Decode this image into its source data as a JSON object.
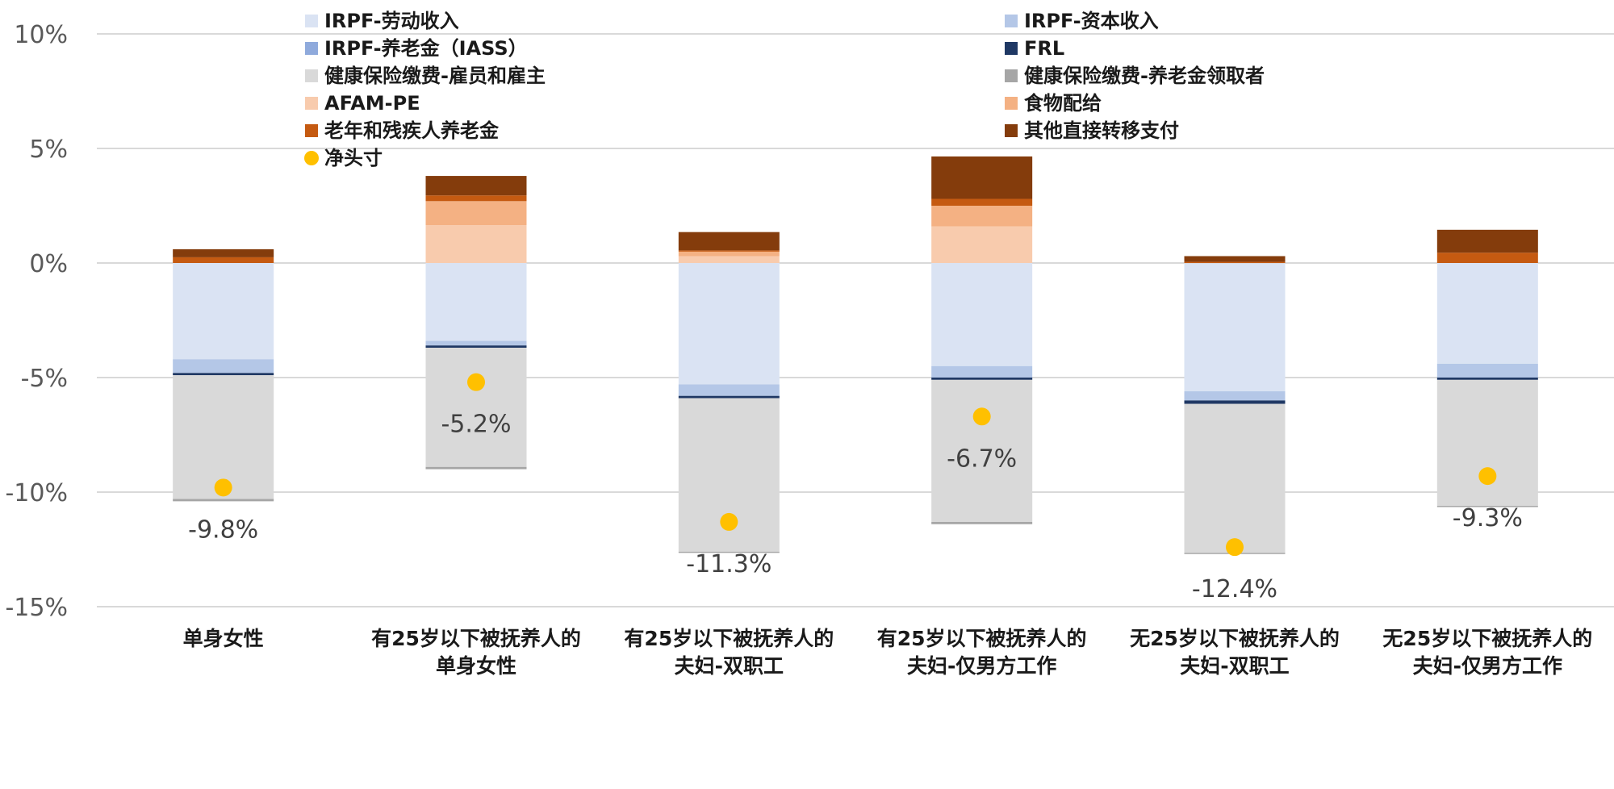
{
  "chart_data": {
    "type": "bar",
    "stacked": true,
    "title": "",
    "xlabel": "",
    "ylabel": "",
    "ylim": [
      -15,
      10
    ],
    "yticks": [
      10,
      5,
      0,
      -5,
      -10,
      -15
    ],
    "ytick_labels": [
      "10%",
      "5%",
      "0%",
      "-5%",
      "-10%",
      "-15%"
    ],
    "grid": true,
    "legend_position": "top",
    "categories": [
      [
        "单身女性"
      ],
      [
        "有25岁以下被抚养人的",
        "单身女性"
      ],
      [
        "有25岁以下被抚养人的",
        "夫妇-双职工"
      ],
      [
        "有25岁以下被抚养人的",
        "夫妇-仅男方工作"
      ],
      [
        "无25岁以下被抚养人的",
        "夫妇-双职工"
      ],
      [
        "无25岁以下被抚养人的",
        "夫妇-仅男方工作"
      ]
    ],
    "series": [
      {
        "name": "IRPF-劳动收入",
        "color": "#dae3f3",
        "values": [
          -4.2,
          -3.4,
          -5.3,
          -4.5,
          -5.6,
          -4.4
        ]
      },
      {
        "name": "IRPF-资本收入",
        "color": "#b4c7e7",
        "values": [
          -0.6,
          -0.2,
          -0.5,
          -0.5,
          -0.4,
          -0.6
        ]
      },
      {
        "name": "IRPF-养老金（IASS）",
        "color": "#8faadc",
        "values": [
          0,
          0,
          0,
          0,
          0,
          0
        ]
      },
      {
        "name": "FRL",
        "color": "#1f3864",
        "values": [
          -0.1,
          -0.1,
          -0.1,
          -0.1,
          -0.15,
          -0.1
        ]
      },
      {
        "name": "健康保险缴费-雇员和雇主",
        "color": "#d9d9d9",
        "values": [
          -5.4,
          -5.2,
          -6.7,
          -6.2,
          -6.5,
          -5.5
        ]
      },
      {
        "name": "健康保险缴费-养老金领取者",
        "color": "#a6a6a6",
        "values": [
          -0.1,
          -0.1,
          -0.05,
          -0.1,
          -0.05,
          -0.05
        ]
      },
      {
        "name": "AFAM-PE",
        "color": "#f8cbad",
        "values": [
          0,
          1.65,
          0.3,
          1.6,
          0,
          0
        ]
      },
      {
        "name": "食物配给",
        "color": "#f4b183",
        "values": [
          0,
          1.05,
          0.2,
          0.9,
          0,
          0
        ]
      },
      {
        "name": "老年和残疾人养老金",
        "color": "#c55a11",
        "values": [
          0.25,
          0.25,
          0.05,
          0.3,
          0.05,
          0.45
        ]
      },
      {
        "name": "其他直接转移支付",
        "color": "#843c0c",
        "values": [
          0.35,
          0.85,
          0.8,
          1.85,
          0.25,
          1.0
        ]
      }
    ],
    "net_position": {
      "name": "净头寸",
      "color": "#ffc000",
      "values": [
        -9.8,
        -5.2,
        -11.3,
        -6.7,
        -12.4,
        -9.3
      ],
      "labels": [
        "-9.8%",
        "-5.2%",
        "-11.3%",
        "-6.7%",
        "-12.4%",
        "-9.3%"
      ]
    },
    "label_placement": [
      "below",
      "below",
      "below",
      "below",
      "below",
      "below"
    ]
  }
}
